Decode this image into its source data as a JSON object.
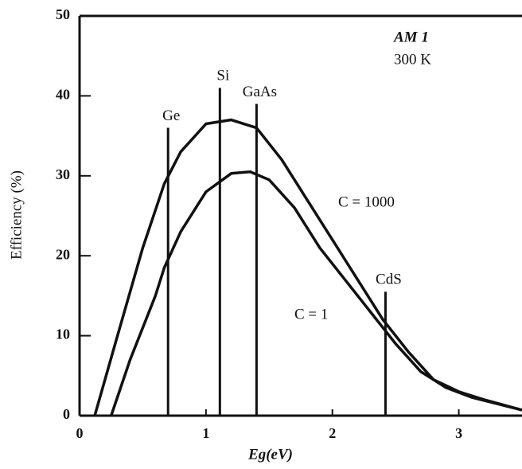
{
  "chart_data": {
    "type": "line",
    "x_label": "Eg(eV)",
    "y_label": "Efficiency (%)",
    "annotations": [
      "AM 1",
      "300 K"
    ],
    "xlim": [
      0,
      3.5
    ],
    "ylim": [
      0,
      50
    ],
    "xticks": [
      0,
      1,
      2,
      3
    ],
    "yticks": [
      0,
      10,
      20,
      30,
      40,
      50
    ],
    "color": "#111111",
    "series": [
      {
        "name": "C = 1000",
        "x": [
          0.12,
          0.3,
          0.5,
          0.67,
          0.8,
          1.0,
          1.2,
          1.4,
          1.6,
          1.8,
          2.0,
          2.2,
          2.4,
          2.6,
          2.8,
          3.0,
          3.2,
          3.5
        ],
        "values": [
          0,
          10,
          21,
          29,
          33,
          36.5,
          37,
          36,
          32,
          27,
          22,
          17,
          12,
          8,
          4.5,
          3,
          2,
          0.7
        ]
      },
      {
        "name": "C = 1",
        "x": [
          0.25,
          0.4,
          0.6,
          0.67,
          0.8,
          1.0,
          1.2,
          1.35,
          1.5,
          1.7,
          1.9,
          2.1,
          2.3,
          2.5,
          2.7,
          2.9,
          3.1,
          3.3,
          3.5
        ],
        "values": [
          0,
          7,
          15,
          18.5,
          23,
          28,
          30.3,
          30.5,
          29.5,
          26,
          21,
          17,
          13,
          9,
          5.5,
          3.5,
          2.3,
          1.5,
          0.7
        ]
      }
    ],
    "markers": [
      {
        "label": "Ge",
        "x": 0.7,
        "top": 36
      },
      {
        "label": "Si",
        "x": 1.11,
        "top": 41
      },
      {
        "label": "GaAs",
        "x": 1.4,
        "top": 39
      },
      {
        "label": "CdS",
        "x": 2.42,
        "top": 15.5
      }
    ]
  }
}
